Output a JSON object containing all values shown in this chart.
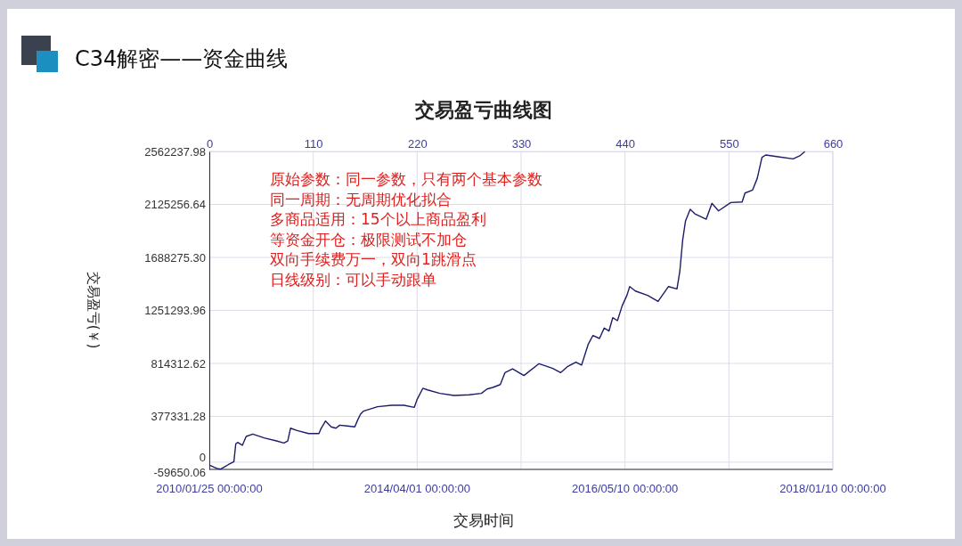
{
  "chart_data": {
    "type": "line",
    "title": "C34解密——资金曲线",
    "subtitle": "交易盈亏曲线图",
    "xlabel": "交易时间",
    "ylabel": "交易盈亏(￥)",
    "annotations": [
      "原始参数：同一参数，只有两个基本参数",
      "同一周期：无周期优化拟合",
      "多商品适用：15个以上商品盈利",
      "等资金开仓：极限测试不加仓",
      "双向手续费万一，双向1跳滑点",
      "日线级别：可以手动跟单",
      "2010/01/25 00:00:00",
      "2014/04/01 00:00:00",
      "2016/05/10 00:00:00",
      "2018/01/10 00:00:00"
    ],
    "xlim": [
      0,
      660
    ],
    "xticks": [
      0,
      110,
      220,
      330,
      440,
      550,
      660
    ],
    "ylim": [
      -59650.06,
      2562237.98
    ],
    "yticks": [
      -59650.06,
      0,
      377331.28,
      814312.62,
      1251293.96,
      {
        "value": 1688275.3,
        "label": "1688275.30"
      },
      2125256.64,
      2562237.98
    ],
    "grid": true,
    "series": [
      {
        "color": "#1c1c6b",
        "x": [
          1,
          8,
          12,
          20,
          26,
          28,
          30,
          35,
          39,
          46,
          58,
          71,
          79,
          83,
          86,
          93,
          105,
          116,
          118,
          123,
          129,
          134,
          138,
          146,
          154,
          157,
          160,
          163,
          178,
          193,
          206,
          217,
          220,
          226,
          231,
          244,
          259,
          275,
          288,
          294,
          300,
          308,
          313,
          321,
          333,
          349,
          363,
          372,
          379,
          388,
          394,
          401,
          406,
          413,
          418,
          423,
          427,
          432,
          437,
          442,
          445,
          451,
          464,
          475,
          486,
          495,
          498,
          501,
          504,
          509,
          514,
          526,
          532,
          539,
          552,
          564,
          567,
          575,
          580,
          585,
          589,
          602,
          618,
          625,
          630
        ],
        "values": [
          -28000,
          -52000,
          -57000,
          -21000,
          4000,
          151000,
          163000,
          139000,
          212000,
          232000,
          200000,
          175000,
          158000,
          175000,
          280000,
          261000,
          236000,
          236000,
          273000,
          339000,
          291000,
          280000,
          305000,
          298000,
          291000,
          347000,
          396000,
          420000,
          457000,
          469000,
          469000,
          452000,
          518000,
          609000,
          596000,
          567000,
          550000,
          555000,
          567000,
          603000,
          616000,
          640000,
          739000,
          770000,
          714000,
          812000,
          775000,
          739000,
          787000,
          824000,
          800000,
          971000,
          1044000,
          1020000,
          1106000,
          1081000,
          1191000,
          1167000,
          1289000,
          1375000,
          1448000,
          1411000,
          1375000,
          1326000,
          1448000,
          1429000,
          1571000,
          1828000,
          1987000,
          2085000,
          2048000,
          2004000,
          2134000,
          2072000,
          2141000,
          2145000,
          2219000,
          2243000,
          2341000,
          2513000,
          2533000,
          2518000,
          2501000,
          2526000,
          2558000
        ]
      }
    ]
  }
}
